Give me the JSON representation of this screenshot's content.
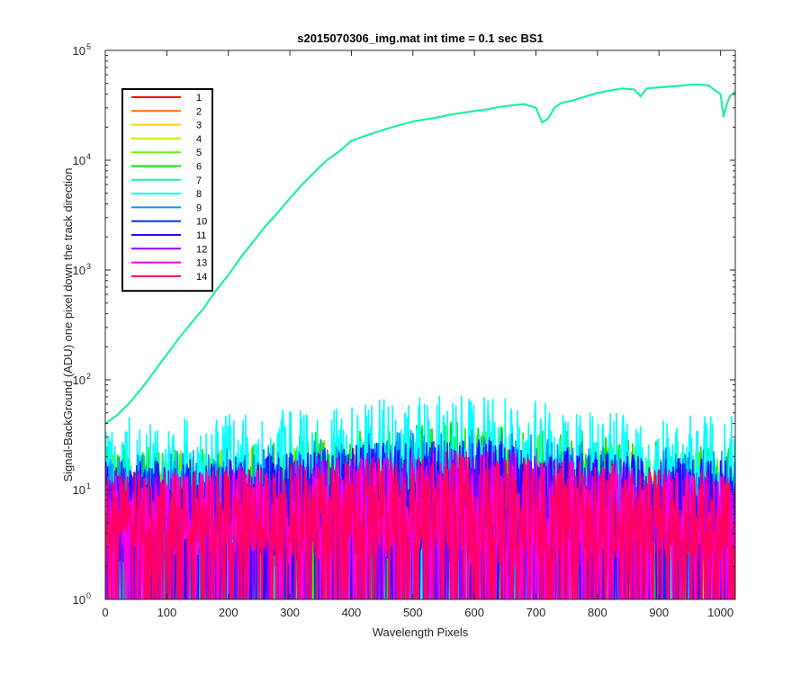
{
  "chart_data": {
    "type": "line",
    "title": "s2015070306_img.mat int time = 0.1 sec   BS1",
    "xlabel": "Wavelength Pixels",
    "ylabel": "Signal-BackGround (ADU) one pixel down the track direction",
    "xlim": [
      0,
      1024
    ],
    "ylim": [
      1,
      100000
    ],
    "yscale": "log",
    "grid": false,
    "legend_placement": "top-left",
    "x_ticks": [
      {
        "value": 0,
        "label": "0"
      },
      {
        "value": 100,
        "label": "100"
      },
      {
        "value": 200,
        "label": "200"
      },
      {
        "value": 300,
        "label": "300"
      },
      {
        "value": 400,
        "label": "400"
      },
      {
        "value": 500,
        "label": "500"
      },
      {
        "value": 600,
        "label": "600"
      },
      {
        "value": 700,
        "label": "700"
      },
      {
        "value": 800,
        "label": "800"
      },
      {
        "value": 900,
        "label": "900"
      },
      {
        "value": 1000,
        "label": "1000"
      }
    ],
    "y_ticks": [
      {
        "value": 1,
        "base": "10",
        "exp": "0"
      },
      {
        "value": 10,
        "base": "10",
        "exp": "1"
      },
      {
        "value": 100,
        "base": "10",
        "exp": "2"
      },
      {
        "value": 1000,
        "base": "10",
        "exp": "3"
      },
      {
        "value": 10000,
        "base": "10",
        "exp": "4"
      },
      {
        "value": 100000,
        "base": "10",
        "exp": "5"
      }
    ],
    "signal_series": {
      "name": "7",
      "color": "#1ef29a",
      "x": [
        0,
        20,
        40,
        60,
        80,
        100,
        120,
        140,
        160,
        180,
        200,
        220,
        240,
        260,
        280,
        300,
        320,
        340,
        360,
        380,
        400,
        420,
        440,
        460,
        480,
        500,
        520,
        540,
        560,
        580,
        600,
        620,
        640,
        660,
        680,
        700,
        710,
        720,
        730,
        740,
        760,
        780,
        800,
        820,
        840,
        860,
        870,
        880,
        900,
        920,
        940,
        960,
        980,
        1000,
        1005,
        1010,
        1015,
        1024
      ],
      "values": [
        40,
        48,
        62,
        85,
        120,
        170,
        240,
        330,
        450,
        650,
        900,
        1300,
        1800,
        2500,
        3300,
        4500,
        6000,
        7800,
        10000,
        12000,
        15000,
        16500,
        18000,
        19500,
        21000,
        22500,
        23500,
        24500,
        26000,
        27000,
        28000,
        29000,
        30500,
        31500,
        32500,
        30000,
        22000,
        24000,
        30000,
        33000,
        35000,
        38000,
        41000,
        43000,
        45000,
        44000,
        38000,
        45000,
        46000,
        47000,
        48000,
        49000,
        48000,
        40000,
        25000,
        32000,
        38000,
        42000
      ]
    },
    "noise_series": [
      {
        "name": "1",
        "color": "#ff0000",
        "level": 14
      },
      {
        "name": "2",
        "color": "#ff6a00",
        "level": 13
      },
      {
        "name": "3",
        "color": "#ffd000",
        "level": 12
      },
      {
        "name": "4",
        "color": "#c8f000",
        "level": 14
      },
      {
        "name": "5",
        "color": "#6ef000",
        "level": 22
      },
      {
        "name": "6",
        "color": "#00e800",
        "level": 26
      },
      {
        "name": "8",
        "color": "#00ffff",
        "level": 45
      },
      {
        "name": "9",
        "color": "#0096ff",
        "level": 22
      },
      {
        "name": "10",
        "color": "#0032ff",
        "level": 18
      },
      {
        "name": "11",
        "color": "#3200ff",
        "level": 18
      },
      {
        "name": "12",
        "color": "#9600ff",
        "level": 15
      },
      {
        "name": "13",
        "color": "#ff00dc",
        "level": 14
      },
      {
        "name": "14",
        "color": "#ff0064",
        "level": 14
      }
    ],
    "legend": [
      {
        "label": "1",
        "color": "#ff0000"
      },
      {
        "label": "2",
        "color": "#ff6a00"
      },
      {
        "label": "3",
        "color": "#ffd000"
      },
      {
        "label": "4",
        "color": "#c8f000"
      },
      {
        "label": "5",
        "color": "#6ef000"
      },
      {
        "label": "6",
        "color": "#00e800"
      },
      {
        "label": "7",
        "color": "#1ef29a"
      },
      {
        "label": "8",
        "color": "#00ffff"
      },
      {
        "label": "9",
        "color": "#0096ff"
      },
      {
        "label": "10",
        "color": "#0032ff"
      },
      {
        "label": "11",
        "color": "#3200ff"
      },
      {
        "label": "12",
        "color": "#9600ff"
      },
      {
        "label": "13",
        "color": "#ff00dc"
      },
      {
        "label": "14",
        "color": "#ff0064"
      }
    ]
  }
}
